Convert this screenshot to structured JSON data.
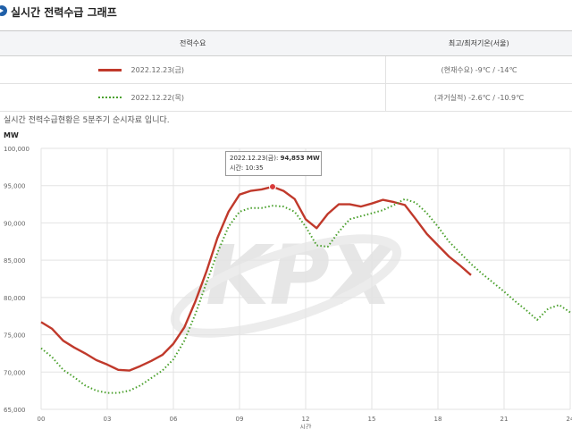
{
  "header": {
    "title": "실시간 전력수급 그래프"
  },
  "legend_table": {
    "col1": "전력수요",
    "col2": "최고/최저기온(서울)",
    "rows": [
      {
        "label": "2022.12.23(금)",
        "temp": "(현재수요) -9℃ / -14℃",
        "color": "#c0392b",
        "style": "solid"
      },
      {
        "label": "2022.12.22(목)",
        "temp": "(과거실적) -2.6℃ / -10.9℃",
        "color": "#4aa02c",
        "style": "dotted"
      }
    ]
  },
  "note": "실시간 전력수급현황은 5분주기 순시자료 입니다.",
  "tooltip": {
    "date": "2022.12.23(금):",
    "value": "94,853 MW",
    "time": "시간: 10:35"
  },
  "watermark": "KPX",
  "chart_data": {
    "type": "line",
    "ylabel": "MW",
    "xlabel": "시간",
    "ylim": [
      65000,
      100000
    ],
    "xlim": [
      0,
      24
    ],
    "grid": true,
    "x_ticks": [
      "00",
      "03",
      "06",
      "09",
      "12",
      "15",
      "18",
      "21",
      "24"
    ],
    "y_ticks": [
      "65,000",
      "70,000",
      "75,000",
      "80,000",
      "85,000",
      "90,000",
      "95,000",
      "100,000"
    ],
    "series": [
      {
        "name": "2022.12.23(금)",
        "color": "#c0392b",
        "style": "solid",
        "x": [
          0,
          0.5,
          1,
          1.5,
          2,
          2.5,
          3,
          3.5,
          4,
          4.5,
          5,
          5.5,
          6,
          6.5,
          7,
          7.5,
          8,
          8.5,
          9,
          9.5,
          10,
          10.5,
          11,
          11.5,
          12,
          12.5,
          13,
          13.5,
          14,
          14.5,
          15,
          15.5,
          16,
          16.5,
          17,
          17.5,
          18,
          18.5,
          19,
          19.5
        ],
        "y": [
          76700,
          75800,
          74200,
          73300,
          72500,
          71600,
          71000,
          70300,
          70200,
          70800,
          71500,
          72300,
          73800,
          76000,
          79500,
          83500,
          88000,
          91500,
          93800,
          94300,
          94500,
          94853,
          94300,
          93200,
          90500,
          89300,
          91200,
          92500,
          92500,
          92200,
          92600,
          93100,
          92800,
          92400,
          90500,
          88500,
          87000,
          85500,
          84300,
          83000
        ]
      },
      {
        "name": "2022.12.22(목)",
        "color": "#4aa02c",
        "style": "dotted",
        "x": [
          0,
          0.5,
          1,
          1.5,
          2,
          2.5,
          3,
          3.5,
          4,
          4.5,
          5,
          5.5,
          6,
          6.5,
          7,
          7.5,
          8,
          8.5,
          9,
          9.5,
          10,
          10.5,
          11,
          11.5,
          12,
          12.5,
          13,
          13.5,
          14,
          14.5,
          15,
          15.5,
          16,
          16.5,
          17,
          17.5,
          18,
          18.5,
          19,
          19.5,
          20,
          20.5,
          21,
          21.5,
          22,
          22.5,
          23,
          23.5,
          24
        ],
        "y": [
          73200,
          72000,
          70300,
          69300,
          68200,
          67500,
          67200,
          67200,
          67500,
          68200,
          69200,
          70200,
          71700,
          74200,
          77800,
          82000,
          86000,
          89500,
          91500,
          92000,
          92000,
          92300,
          92200,
          91500,
          89500,
          87000,
          86800,
          88800,
          90500,
          90900,
          91300,
          91700,
          92400,
          93200,
          92700,
          91300,
          89500,
          87500,
          86000,
          84500,
          83200,
          82000,
          80800,
          79500,
          78300,
          77000,
          78500,
          79000,
          78000
        ]
      }
    ]
  }
}
